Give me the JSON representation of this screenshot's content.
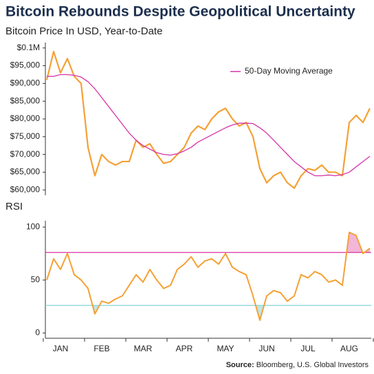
{
  "title": "Bitcoin Rebounds Despite Geopolitical Uncertainty",
  "source_label": "Source:",
  "source": "Bloomberg, U.S. Global Investors",
  "chart_data": [
    {
      "type": "line",
      "subtitle": "Bitcoin Price In USD, Year-to-Date",
      "categories": [
        null,
        null,
        "JAN",
        null,
        null,
        null,
        null,
        null,
        "FEB",
        null,
        null,
        null,
        null,
        null,
        "MAR",
        null,
        null,
        null,
        null,
        null,
        "APR",
        null,
        null,
        null,
        null,
        null,
        "MAY",
        null,
        null,
        null,
        null,
        null,
        "JUN",
        null,
        null,
        null,
        null,
        null,
        "JUL",
        null,
        null,
        null,
        null,
        null,
        "AUG",
        null,
        null,
        null
      ],
      "series": [
        {
          "color": "#f5a034",
          "values": [
            91000,
            99000,
            93000,
            97000,
            92000,
            90000,
            72000,
            64000,
            70000,
            68000,
            67000,
            68000,
            68000,
            74000,
            72000,
            73000,
            70000,
            67500,
            68000,
            70000,
            72000,
            76000,
            78000,
            77000,
            80000,
            82000,
            83000,
            80000,
            78000,
            79000,
            75000,
            66000,
            62000,
            64000,
            65000,
            62000,
            60500,
            64000,
            66000,
            65500,
            67000,
            65000,
            65000,
            64000,
            79000,
            81000,
            79000,
            83000
          ]
        },
        {
          "name": "50-Day Moving Average",
          "color": "#d633a8",
          "values": [
            92000,
            92000,
            92500,
            92500,
            92300,
            91800,
            90500,
            88500,
            86000,
            83500,
            81000,
            78500,
            76000,
            74000,
            72500,
            71500,
            70500,
            70000,
            69800,
            70200,
            71000,
            72000,
            73500,
            74500,
            75500,
            76500,
            77500,
            78300,
            78800,
            78800,
            78700,
            77500,
            76000,
            74000,
            72000,
            70000,
            68000,
            66500,
            65000,
            64000,
            64000,
            64200,
            64000,
            64300,
            65000,
            66500,
            68000,
            69500
          ]
        }
      ],
      "ylim": [
        58500,
        101500
      ],
      "yticks": [
        {
          "value": 60000,
          "label": "$60,000"
        },
        {
          "value": 65000,
          "label": "$65,000"
        },
        {
          "value": 70000,
          "label": "$70,000"
        },
        {
          "value": 75000,
          "label": "$75,000"
        },
        {
          "value": 80000,
          "label": "$80,000"
        },
        {
          "value": 85000,
          "label": "$85,000"
        },
        {
          "value": 90000,
          "label": "$90,000"
        },
        {
          "value": 95000,
          "label": "$95,000"
        },
        {
          "value": 100000,
          "label": "$0.1M"
        }
      ]
    },
    {
      "type": "line",
      "title": "RSI",
      "color": "#f5a034",
      "values": [
        50,
        70,
        60,
        75,
        55,
        50,
        42,
        18,
        30,
        28,
        32,
        35,
        45,
        55,
        48,
        60,
        50,
        42,
        45,
        60,
        65,
        72,
        62,
        68,
        70,
        65,
        75,
        62,
        58,
        55,
        35,
        12,
        35,
        40,
        38,
        30,
        35,
        55,
        52,
        58,
        55,
        48,
        50,
        45,
        95,
        92,
        75,
        80
      ],
      "reference_lines": [
        {
          "value": 76,
          "color": "#d9339f",
          "fill": "#f2b6d8",
          "shade": "above"
        },
        {
          "value": 26,
          "color": "#86d3d8",
          "fill": "#bfe6e8",
          "shade": "below"
        }
      ],
      "ylim": [
        -5,
        106
      ],
      "yticks": [
        0,
        50,
        100
      ]
    }
  ]
}
